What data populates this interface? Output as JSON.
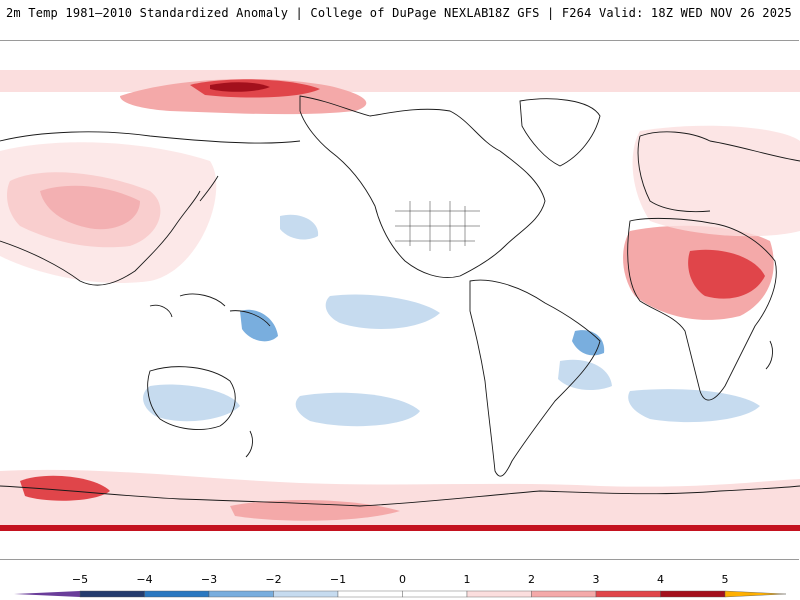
{
  "header": {
    "left_title": "2m Temp 1981–2010 Standardized Anomaly | College of DuPage NEXLAB",
    "right_title": "18Z GFS | F264 Valid: 18Z WED NOV 26 2025"
  },
  "legend": {
    "ticks": [
      "−5",
      "−4",
      "−3",
      "−2",
      "−1",
      "0",
      "1",
      "2",
      "3",
      "4",
      "5"
    ],
    "colors": {
      "neg5": "#6a3d9a",
      "neg4": "#243c6e",
      "neg3": "#2a78c0",
      "neg2": "#79aede",
      "neg1": "#c6dbef",
      "zero": "#ffffff",
      "pos1": "#fbdede",
      "pos2": "#f4a9a9",
      "pos3": "#e0454a",
      "pos4": "#a3101c",
      "pos5": "#6b0008",
      "ext": "#ffb000"
    }
  },
  "map": {
    "ocean_color": "#ffffff",
    "coast_color": "#1a1a1a",
    "pole_band_color": "#c4121f"
  }
}
